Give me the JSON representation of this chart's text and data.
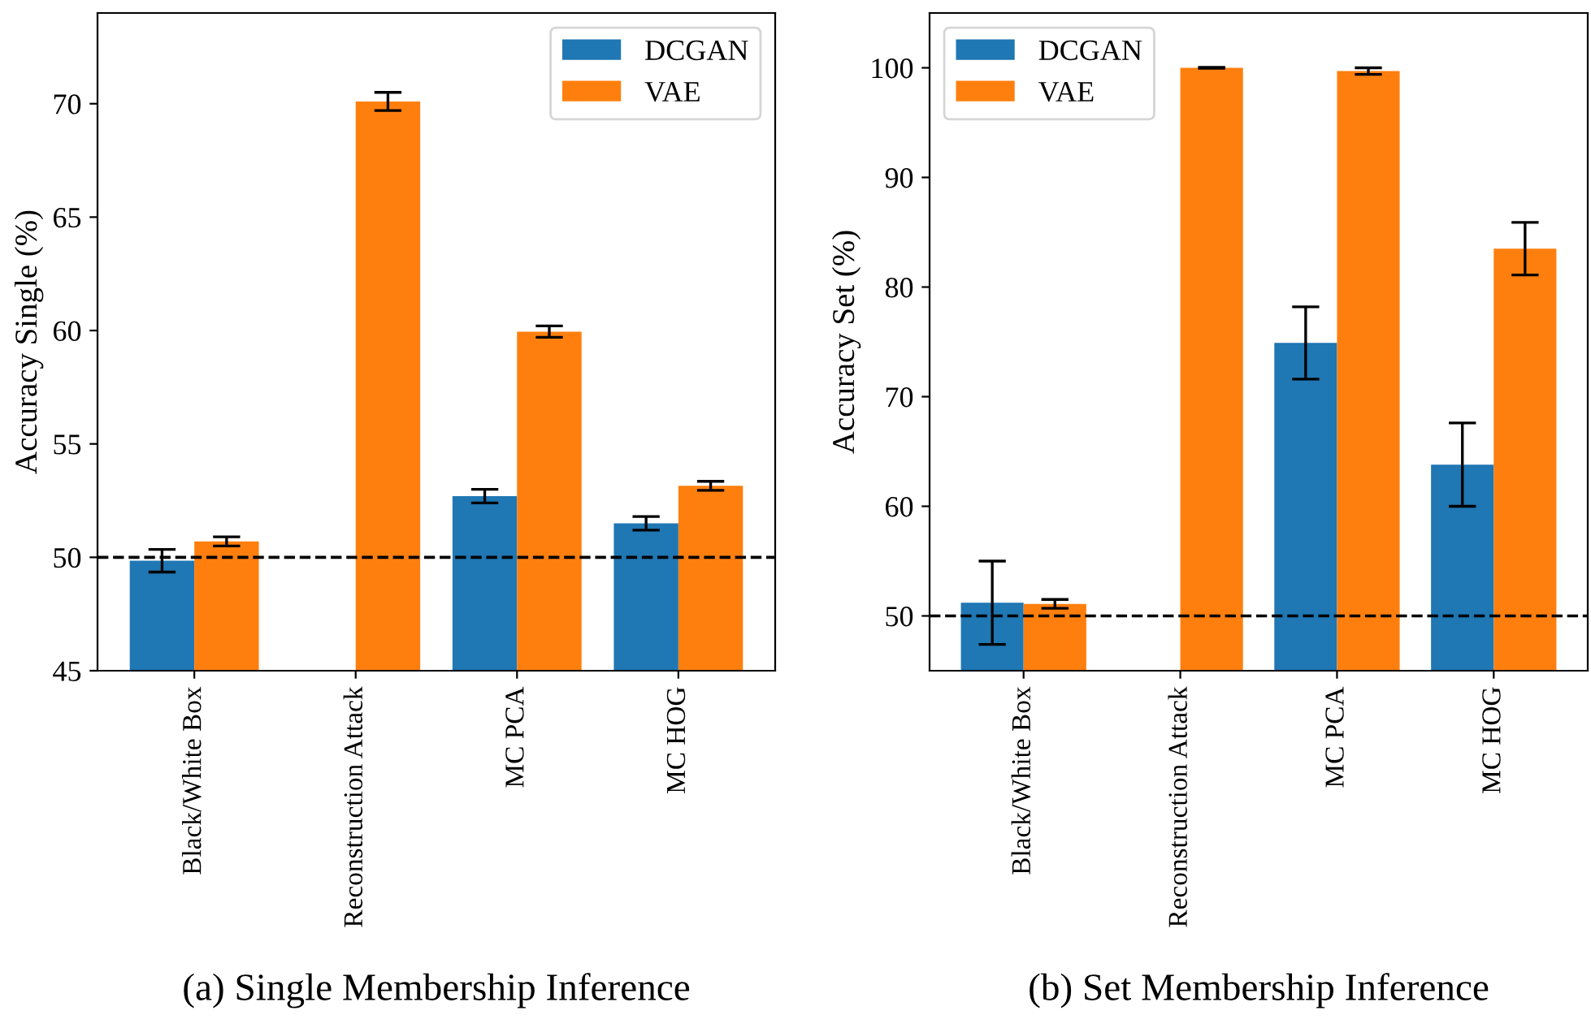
{
  "chart_data": [
    {
      "type": "bar",
      "xlabel": "(a) Single Membership Inference",
      "ylabel": "Accuracy Single (%)",
      "categories": [
        "Black/White Box",
        "Reconstruction Attack",
        "MC PCA",
        "MC HOG"
      ],
      "series": [
        {
          "name": "DCGAN",
          "color": "#1f77b4",
          "values": [
            49.85,
            null,
            52.7,
            51.5
          ],
          "errors": [
            0.5,
            null,
            0.3,
            0.3
          ]
        },
        {
          "name": "VAE",
          "color": "#ff7f0e",
          "values": [
            50.7,
            70.1,
            59.95,
            53.15
          ],
          "errors": [
            0.2,
            0.4,
            0.25,
            0.2
          ]
        }
      ],
      "ylim": [
        45,
        74
      ],
      "yticks": [
        45,
        50,
        55,
        60,
        65,
        70
      ],
      "ref_lines": [
        {
          "axis": "y",
          "value": 50,
          "color": "#000000",
          "line_style": "dashed"
        }
      ],
      "legend": "top right",
      "grid": false
    },
    {
      "type": "bar",
      "xlabel": "(b) Set Membership Inference",
      "ylabel": "Accuracy Set (%)",
      "categories": [
        "Black/White Box",
        "Reconstruction Attack",
        "MC PCA",
        "MC HOG"
      ],
      "series": [
        {
          "name": "DCGAN",
          "color": "#1f77b4",
          "values": [
            51.2,
            null,
            74.9,
            63.8
          ],
          "errors": [
            3.8,
            null,
            3.3,
            3.8
          ]
        },
        {
          "name": "VAE",
          "color": "#ff7f0e",
          "values": [
            51.1,
            100,
            99.7,
            83.5
          ],
          "errors": [
            0.4,
            0.05,
            0.3,
            2.4
          ]
        }
      ],
      "ylim": [
        45,
        105
      ],
      "yticks": [
        50,
        60,
        70,
        80,
        90,
        100
      ],
      "ref_lines": [
        {
          "axis": "y",
          "value": 50,
          "color": "#000000",
          "line_style": "dashed"
        }
      ],
      "legend": "top left",
      "grid": false
    }
  ]
}
